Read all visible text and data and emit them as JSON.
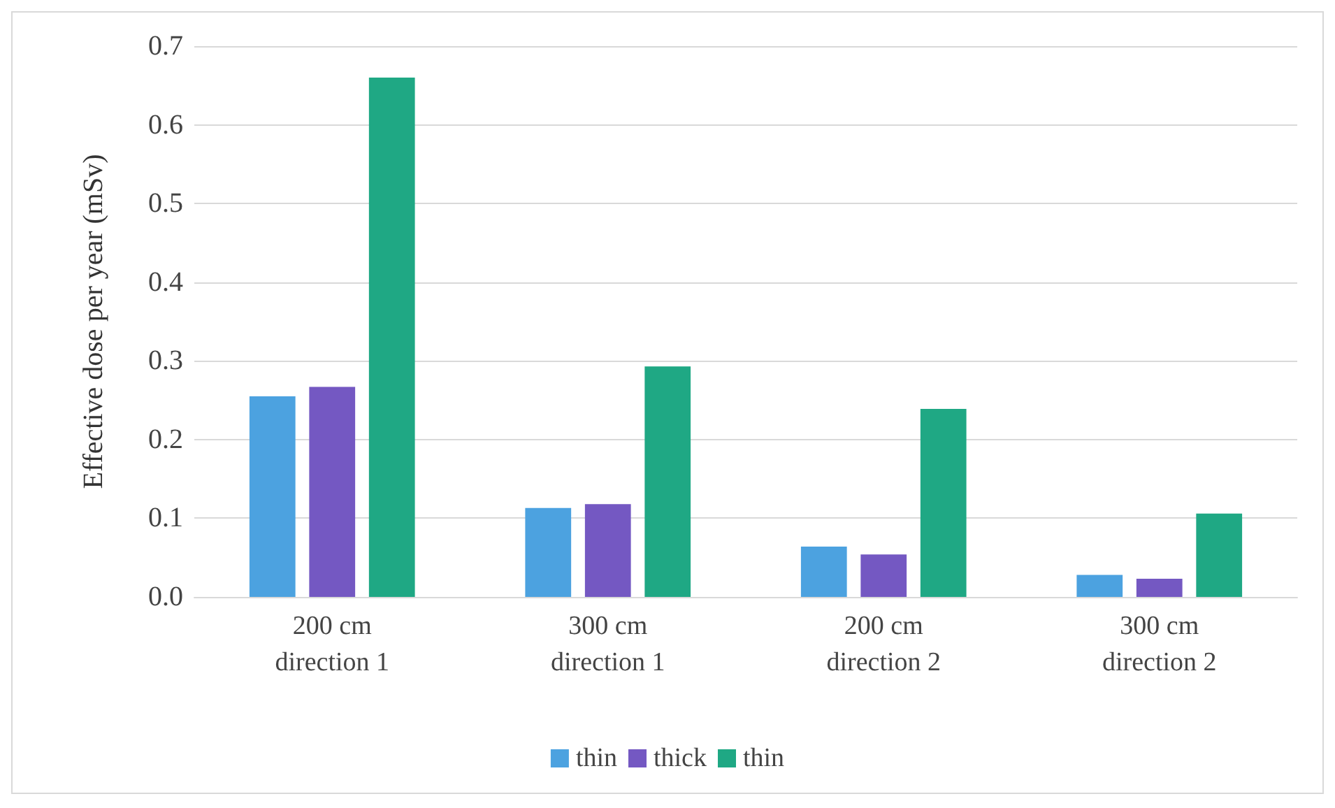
{
  "chart_data": {
    "type": "bar",
    "ylabel": "Effective dose per year (mSv)",
    "categories": [
      "200 cm\ndirection 1",
      "300 cm\ndirection 1",
      "200 cm\ndirection 2",
      "300 cm\ndirection 2"
    ],
    "series": [
      {
        "name": "thin",
        "color": "#4ca2e0",
        "values": [
          0.255,
          0.113,
          0.064,
          0.028
        ]
      },
      {
        "name": "thick",
        "color": "#7458c2",
        "values": [
          0.267,
          0.118,
          0.054,
          0.023
        ]
      },
      {
        "name": "thin",
        "color": "#1fa884",
        "values": [
          0.66,
          0.293,
          0.239,
          0.106
        ]
      }
    ],
    "ylim": [
      0,
      0.7
    ],
    "yticks": [
      {
        "value": 0,
        "label": "0.0"
      },
      0.1,
      0.2,
      0.3,
      0.4,
      0.5,
      0.6,
      0.7
    ],
    "grid": "y",
    "legend": "bottom"
  }
}
